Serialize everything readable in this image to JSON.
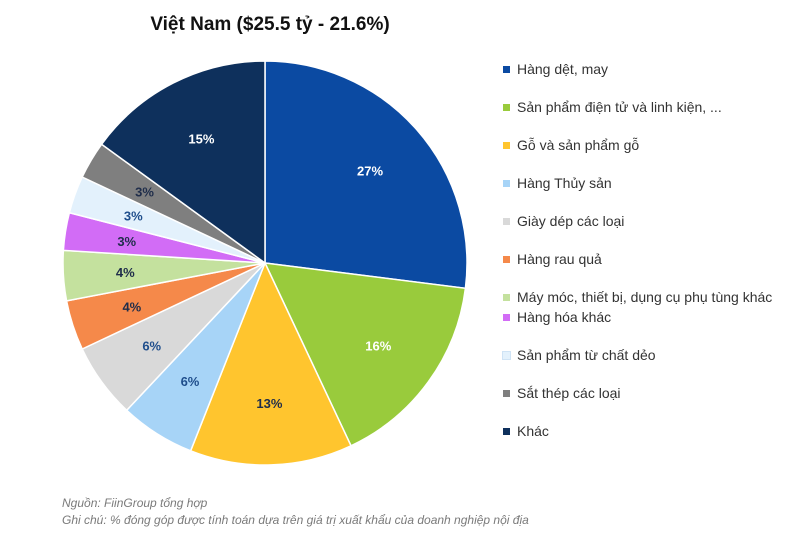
{
  "chart_data": {
    "type": "pie",
    "title": "Việt Nam ($25.5 tỷ - 21.6%)",
    "slices": [
      {
        "label": "Hàng dệt, may",
        "value": 27,
        "value_label": "27%",
        "color": "#0B4AA2",
        "label_color": "#ffffff"
      },
      {
        "label": "Sản phẩm điện tử và linh kiện, ...",
        "value": 16,
        "value_label": "16%",
        "color": "#99CB3C",
        "label_color": "#ffffff"
      },
      {
        "label": "Gỗ và sản phẩm gỗ",
        "value": 13,
        "value_label": "13%",
        "color": "#FFC52E",
        "label_color": "#1f2d4a"
      },
      {
        "label": "Hàng Thủy sản",
        "value": 6,
        "value_label": "6%",
        "color": "#A7D4F7",
        "label_color": "#1f4e8c"
      },
      {
        "label": "Giày dép các loại",
        "value": 6,
        "value_label": "6%",
        "color": "#D9D9D9",
        "label_color": "#1f4e8c"
      },
      {
        "label": "Hàng rau quả",
        "value": 4,
        "value_label": "4%",
        "color": "#F5894A",
        "label_color": "#1f2d4a"
      },
      {
        "label": "Máy móc, thiết bị, dụng cụ phụ tùng khác",
        "value": 4,
        "value_label": "4%",
        "color": "#C4E19E",
        "label_color": "#1f2d4a"
      },
      {
        "label": "Hàng hóa khác",
        "value": 3,
        "value_label": "3%",
        "color": "#D26CF6",
        "label_color": "#1f2d4a"
      },
      {
        "label": "Sản phẩm từ chất dẻo",
        "value": 3,
        "value_label": "3%",
        "color": "#E3F1FC",
        "label_color": "#1f4e8c"
      },
      {
        "label": "Sắt thép các loại",
        "value": 3,
        "value_label": "3%",
        "color": "#7F7F7F",
        "label_color": "#1f2d4a"
      },
      {
        "label": "Khác",
        "value": 15,
        "value_label": "15%",
        "color": "#0E305C",
        "label_color": "#ffffff"
      }
    ],
    "legend_placement": "right"
  },
  "notes": {
    "source": "Nguồn: FiinGroup tổng hợp",
    "note": "Ghi chú: % đóng góp được tính toán dựa trên giá trị xuất khẩu của doanh nghiệp nội địa"
  }
}
